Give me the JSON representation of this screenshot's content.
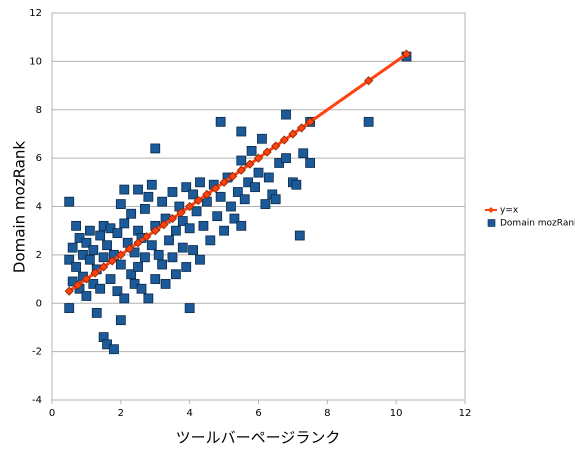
{
  "chart_data": {
    "type": "scatter",
    "xlabel": "ツールバーページランク",
    "ylabel": "Domain mozRank",
    "xlim": [
      0,
      12
    ],
    "xticks": [
      0,
      2,
      4,
      6,
      8,
      10,
      12
    ],
    "ylim": [
      -4,
      12
    ],
    "yticks": [
      -4,
      -2,
      0,
      2,
      4,
      6,
      8,
      10,
      12
    ],
    "grid": true,
    "legend": "right",
    "series": [
      {
        "name": "Domain mozRank",
        "color": "#1c5a99",
        "marker": "square",
        "x": [
          0.5,
          0.5,
          0.5,
          0.6,
          0.6,
          0.7,
          0.7,
          0.8,
          0.8,
          0.9,
          0.9,
          1.0,
          1.0,
          1.1,
          1.1,
          1.2,
          1.2,
          1.3,
          1.3,
          1.4,
          1.4,
          1.5,
          1.5,
          1.5,
          1.6,
          1.6,
          1.7,
          1.7,
          1.8,
          1.8,
          1.9,
          1.9,
          2.0,
          2.0,
          2.0,
          2.1,
          2.1,
          2.1,
          2.2,
          2.3,
          2.3,
          2.4,
          2.4,
          2.5,
          2.5,
          2.5,
          2.6,
          2.6,
          2.7,
          2.7,
          2.8,
          2.8,
          2.9,
          2.9,
          3.0,
          3.0,
          3.0,
          3.1,
          3.2,
          3.2,
          3.3,
          3.3,
          3.4,
          3.5,
          3.5,
          3.6,
          3.6,
          3.7,
          3.8,
          3.8,
          3.9,
          3.9,
          4.0,
          4.0,
          4.1,
          4.1,
          4.2,
          4.3,
          4.3,
          4.4,
          4.5,
          4.6,
          4.7,
          4.8,
          4.9,
          4.9,
          5.0,
          5.1,
          5.2,
          5.3,
          5.4,
          5.5,
          5.5,
          5.5,
          5.6,
          5.7,
          5.8,
          5.9,
          6.0,
          6.1,
          6.2,
          6.3,
          6.4,
          6.5,
          6.6,
          6.8,
          6.8,
          7.0,
          7.1,
          7.2,
          7.3,
          7.5,
          7.5,
          9.2,
          10.3
        ],
        "values": [
          4.2,
          -0.2,
          1.8,
          2.3,
          0.9,
          3.2,
          1.5,
          2.7,
          0.6,
          2.0,
          1.1,
          2.5,
          0.3,
          1.8,
          3.0,
          0.8,
          2.2,
          1.4,
          -0.4,
          2.8,
          0.6,
          -1.4,
          3.2,
          1.9,
          -1.7,
          2.4,
          1.0,
          3.1,
          -1.9,
          2.0,
          0.5,
          2.9,
          -0.7,
          4.1,
          1.6,
          4.7,
          3.3,
          0.2,
          2.5,
          1.2,
          3.7,
          0.8,
          2.1,
          4.7,
          3.0,
          1.5,
          0.6,
          2.7,
          3.9,
          1.9,
          4.4,
          0.2,
          2.4,
          4.9,
          6.4,
          3.2,
          1.0,
          2.0,
          4.2,
          1.6,
          3.5,
          0.8,
          2.6,
          4.6,
          1.9,
          3.0,
          1.2,
          4.0,
          2.3,
          3.4,
          4.8,
          1.5,
          -0.2,
          3.1,
          4.5,
          2.2,
          3.8,
          1.8,
          5.0,
          3.2,
          4.2,
          2.6,
          4.9,
          3.6,
          7.5,
          4.4,
          3.0,
          5.2,
          4.0,
          3.5,
          4.6,
          7.1,
          5.9,
          3.2,
          4.3,
          5.0,
          6.3,
          4.8,
          5.4,
          6.8,
          4.1,
          5.2,
          4.5,
          4.3,
          5.8,
          7.8,
          6.0,
          5.0,
          4.9,
          2.8,
          6.2,
          5.8,
          7.5,
          7.5,
          10.2
        ]
      },
      {
        "name": "y=x",
        "color": "#ff420e",
        "marker": "diamond",
        "line": true,
        "x": [
          0.5,
          0.75,
          1.0,
          1.25,
          1.5,
          1.75,
          2.0,
          2.25,
          2.5,
          2.75,
          3.0,
          3.25,
          3.5,
          3.75,
          4.0,
          4.25,
          4.5,
          4.75,
          5.0,
          5.25,
          5.5,
          5.75,
          6.0,
          6.25,
          6.5,
          6.75,
          7.0,
          7.25,
          7.5,
          9.2,
          10.3
        ],
        "values": [
          0.5,
          0.75,
          1.0,
          1.25,
          1.5,
          1.75,
          2.0,
          2.25,
          2.5,
          2.75,
          3.0,
          3.25,
          3.5,
          3.75,
          4.0,
          4.25,
          4.5,
          4.75,
          5.0,
          5.25,
          5.5,
          5.75,
          6.0,
          6.25,
          6.5,
          6.75,
          7.0,
          7.25,
          7.5,
          9.2,
          10.3
        ]
      }
    ]
  }
}
